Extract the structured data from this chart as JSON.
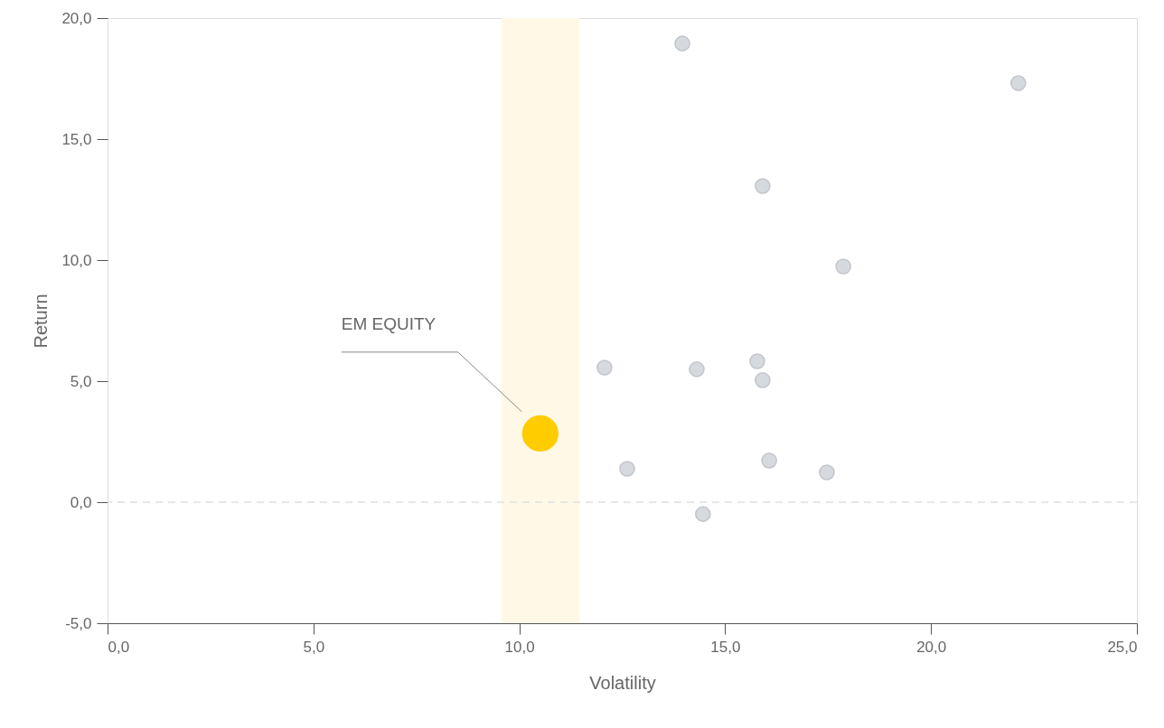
{
  "chart_data": {
    "type": "scatter",
    "xlabel": "Volatility",
    "ylabel": "Return",
    "series": [
      {
        "color": "#d6d9dd",
        "x": [
          13.96,
          22.12,
          15.91,
          17.87,
          12.07,
          14.31,
          15.78,
          15.91,
          12.62,
          16.07,
          17.47,
          14.46
        ],
        "values": [
          18.95,
          17.31,
          13.06,
          9.74,
          5.56,
          5.49,
          5.82,
          5.04,
          1.38,
          1.72,
          1.23,
          -0.49
        ]
      },
      {
        "color": "#ffcc00",
        "x": [
          10.51
        ],
        "values": [
          2.84
        ]
      }
    ],
    "annotations": [
      "EM EQUITY"
    ],
    "bands": [
      {
        "axis": "x",
        "from": 9.57,
        "to": 11.46,
        "color": "#fff8e6"
      }
    ],
    "ref_lines": [
      {
        "axis": "y",
        "value": 0,
        "color": "#e0e0e0",
        "line_style": "dashed"
      }
    ],
    "xlim": [
      0,
      25
    ],
    "ylim": [
      -5,
      20
    ],
    "xticks": [
      {
        "value": 0,
        "label": "0,0"
      },
      {
        "value": 5,
        "label": "5,0"
      },
      {
        "value": 10,
        "label": "10,0"
      },
      {
        "value": 15,
        "label": "15,0"
      },
      {
        "value": 20,
        "label": "20,0"
      },
      {
        "value": 25,
        "label": "25,0"
      }
    ],
    "yticks": [
      {
        "value": -5,
        "label": "-5,0"
      },
      {
        "value": 0,
        "label": "0,0"
      },
      {
        "value": 5,
        "label": "5,0"
      },
      {
        "value": 10,
        "label": "10,0"
      },
      {
        "value": 15,
        "label": "15,0"
      },
      {
        "value": 20,
        "label": "20,0"
      }
    ],
    "grid": false
  }
}
